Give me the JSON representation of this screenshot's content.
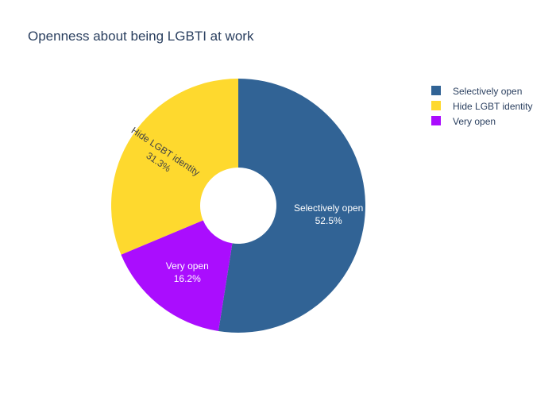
{
  "chart_data": {
    "type": "pie",
    "hole": true,
    "title": "Openness about being LGBTI at work",
    "legend_position": "top-right",
    "slices": [
      {
        "label": "Selectively open",
        "value": 52.5,
        "percent_label": "52.5%",
        "color": "#316395",
        "text_color": "#ffffff"
      },
      {
        "label": "Very open",
        "value": 16.2,
        "percent_label": "16.2%",
        "color": "#AA0DFE",
        "text_color": "#ffffff"
      },
      {
        "label": "Hide LGBT identity",
        "value": 31.3,
        "percent_label": "31.3%",
        "color": "#FED92E",
        "text_color": "#444444"
      }
    ],
    "legend": [
      {
        "label": "Selectively open",
        "color": "#316395"
      },
      {
        "label": "Hide LGBT identity",
        "color": "#FED92E"
      },
      {
        "label": "Very open",
        "color": "#AA0DFE"
      }
    ]
  }
}
